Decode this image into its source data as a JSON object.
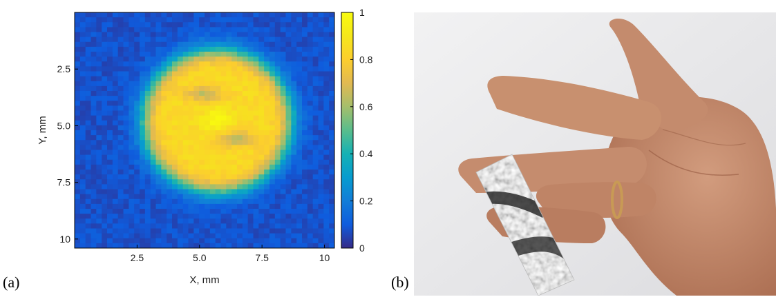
{
  "panels": {
    "a": {
      "label": "(a)"
    },
    "b": {
      "label": "(b)"
    }
  },
  "chart_data": {
    "type": "heatmap",
    "title": "",
    "xlabel": "X, mm",
    "ylabel": "Y, mm",
    "xlim": [
      0,
      10.4
    ],
    "ylim": [
      10.4,
      0
    ],
    "x_ticks": [
      2.5,
      5.0,
      7.5,
      10
    ],
    "x_tick_labels": [
      "2.5",
      "5.0",
      "7.5",
      "10"
    ],
    "y_ticks": [
      2.5,
      5.0,
      7.5,
      10
    ],
    "y_tick_labels": [
      "2.5",
      "5.0",
      "7.5",
      "10"
    ],
    "colorbar": {
      "colormap": "parula",
      "range": [
        0,
        1
      ],
      "ticks": [
        0,
        0.2,
        0.4,
        0.6,
        0.8,
        1
      ],
      "tick_labels": [
        "0",
        "0.2",
        "0.4",
        "0.6",
        "0.8",
        "1"
      ]
    },
    "description_values": {
      "spot_center_x_mm": 5.7,
      "spot_center_y_mm": 4.8,
      "spot_radius_x_mm": 3.2,
      "spot_radius_y_mm": 3.4,
      "spot_peak_value": 1,
      "spot_plateau_value": 0.85,
      "background_value": 0.08,
      "local_minima": [
        {
          "x_mm": 5.2,
          "y_mm": 3.6,
          "value": 0.65
        },
        {
          "x_mm": 6.5,
          "y_mm": 5.6,
          "value": 0.65
        }
      ]
    }
  },
  "photo": {
    "subject": "hand with grayscale sensor strip across fingers",
    "colors": {
      "paper": "#ececee",
      "skin": "#c58c6e",
      "skin_dark": "#9a6248",
      "ring": "#c89a55"
    }
  }
}
